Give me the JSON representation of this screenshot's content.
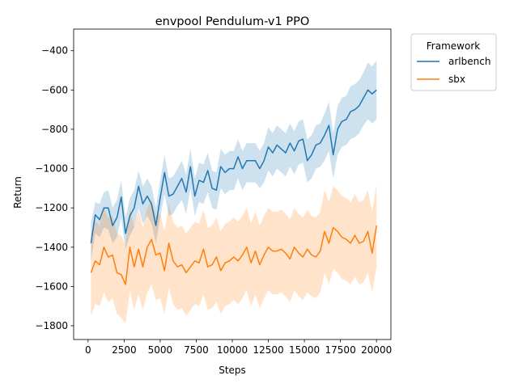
{
  "chart_data": {
    "type": "line",
    "title": "envpool Pendulum-v1 PPO",
    "xlabel": "Steps",
    "ylabel": "Return",
    "xlim": [
      -1000,
      21000
    ],
    "ylim": [
      -1870,
      -290
    ],
    "xticks": [
      0,
      2500,
      5000,
      7500,
      10000,
      12500,
      15000,
      17500,
      20000
    ],
    "xtick_labels": [
      "0",
      "2500",
      "5000",
      "7500",
      "10000",
      "12500",
      "15000",
      "17500",
      "20000"
    ],
    "yticks": [
      -1800,
      -1600,
      -1400,
      -1200,
      -1000,
      -800,
      -600,
      -400
    ],
    "ytick_labels": [
      "−1800",
      "−1600",
      "−1400",
      "−1200",
      "−1000",
      "−800",
      "−600",
      "−400"
    ],
    "grid": false,
    "legend": {
      "title": "Framework",
      "placement": "outside-right-top"
    },
    "shaded_band": "confidence interval around each series mean",
    "series": [
      {
        "name": "arlbench",
        "color": "#1f77b4",
        "band_color": "#1f77b4",
        "x": [
          200,
          500,
          800,
          1100,
          1400,
          1700,
          2000,
          2300,
          2600,
          2900,
          3200,
          3500,
          3800,
          4100,
          4400,
          4700,
          5000,
          5300,
          5600,
          5900,
          6200,
          6500,
          6800,
          7100,
          7400,
          7700,
          8000,
          8300,
          8600,
          8900,
          9200,
          9500,
          9800,
          10100,
          10400,
          10700,
          11000,
          11300,
          11600,
          11900,
          12200,
          12500,
          12800,
          13100,
          13400,
          13700,
          14000,
          14300,
          14600,
          14900,
          15200,
          15500,
          15800,
          16100,
          16400,
          16700,
          17000,
          17300,
          17600,
          17900,
          18200,
          18500,
          18800,
          19100,
          19400,
          19700,
          20000
        ],
        "y": [
          -1380,
          -1235,
          -1260,
          -1200,
          -1200,
          -1290,
          -1250,
          -1145,
          -1330,
          -1240,
          -1200,
          -1090,
          -1180,
          -1140,
          -1180,
          -1290,
          -1150,
          -1020,
          -1140,
          -1130,
          -1090,
          -1050,
          -1120,
          -990,
          -1140,
          -1060,
          -1070,
          -1010,
          -1100,
          -1110,
          -990,
          -1020,
          -1000,
          -1000,
          -940,
          -1000,
          -960,
          -960,
          -960,
          -1000,
          -960,
          -890,
          -920,
          -880,
          -900,
          -920,
          -870,
          -910,
          -860,
          -850,
          -960,
          -930,
          -880,
          -870,
          -830,
          -780,
          -930,
          -800,
          -760,
          -750,
          -710,
          -700,
          -680,
          -640,
          -600,
          -620,
          -600
        ],
        "lower": [
          -1470,
          -1330,
          -1350,
          -1300,
          -1310,
          -1380,
          -1350,
          -1250,
          -1410,
          -1340,
          -1300,
          -1200,
          -1280,
          -1240,
          -1280,
          -1380,
          -1250,
          -1130,
          -1240,
          -1230,
          -1190,
          -1160,
          -1230,
          -1100,
          -1240,
          -1170,
          -1180,
          -1120,
          -1200,
          -1210,
          -1100,
          -1130,
          -1110,
          -1110,
          -1050,
          -1110,
          -1070,
          -1070,
          -1070,
          -1100,
          -1070,
          -1010,
          -1040,
          -1000,
          -1020,
          -1040,
          -990,
          -1030,
          -980,
          -970,
          -1070,
          -1050,
          -1000,
          -990,
          -960,
          -910,
          -1050,
          -930,
          -890,
          -880,
          -850,
          -840,
          -820,
          -780,
          -750,
          -770,
          -750
        ],
        "upper": [
          -1280,
          -1170,
          -1180,
          -1120,
          -1110,
          -1200,
          -1160,
          -1060,
          -1250,
          -1150,
          -1110,
          -1010,
          -1090,
          -1050,
          -1090,
          -1200,
          -1060,
          -930,
          -1050,
          -1040,
          -1000,
          -960,
          -1030,
          -900,
          -1050,
          -970,
          -980,
          -920,
          -1010,
          -1020,
          -900,
          -930,
          -910,
          -910,
          -850,
          -910,
          -870,
          -870,
          -870,
          -910,
          -870,
          -790,
          -820,
          -780,
          -800,
          -820,
          -770,
          -810,
          -760,
          -750,
          -850,
          -830,
          -780,
          -770,
          -720,
          -660,
          -820,
          -680,
          -640,
          -630,
          -580,
          -570,
          -550,
          -510,
          -460,
          -480,
          -450
        ]
      },
      {
        "name": "sbx",
        "color": "#ff7f0e",
        "band_color": "#ff7f0e",
        "x": [
          200,
          500,
          800,
          1100,
          1400,
          1700,
          2000,
          2300,
          2600,
          2900,
          3200,
          3500,
          3800,
          4100,
          4400,
          4700,
          5000,
          5300,
          5600,
          5900,
          6200,
          6500,
          6800,
          7100,
          7400,
          7700,
          8000,
          8300,
          8600,
          8900,
          9200,
          9500,
          9800,
          10100,
          10400,
          10700,
          11000,
          11300,
          11600,
          11900,
          12200,
          12500,
          12800,
          13100,
          13400,
          13700,
          14000,
          14300,
          14600,
          14900,
          15200,
          15500,
          15800,
          16100,
          16400,
          16700,
          17000,
          17300,
          17600,
          17900,
          18200,
          18500,
          18800,
          19100,
          19400,
          19700,
          20000
        ],
        "y": [
          -1530,
          -1470,
          -1490,
          -1400,
          -1450,
          -1440,
          -1530,
          -1540,
          -1590,
          -1400,
          -1500,
          -1410,
          -1500,
          -1400,
          -1360,
          -1440,
          -1430,
          -1520,
          -1380,
          -1470,
          -1500,
          -1490,
          -1530,
          -1500,
          -1470,
          -1480,
          -1410,
          -1500,
          -1490,
          -1450,
          -1520,
          -1480,
          -1470,
          -1450,
          -1470,
          -1440,
          -1400,
          -1480,
          -1420,
          -1490,
          -1440,
          -1400,
          -1420,
          -1420,
          -1410,
          -1430,
          -1460,
          -1400,
          -1430,
          -1450,
          -1410,
          -1440,
          -1450,
          -1420,
          -1320,
          -1380,
          -1300,
          -1320,
          -1350,
          -1360,
          -1380,
          -1340,
          -1380,
          -1370,
          -1320,
          -1430,
          -1290
        ],
        "lower": [
          -1750,
          -1690,
          -1700,
          -1630,
          -1680,
          -1660,
          -1740,
          -1760,
          -1790,
          -1620,
          -1720,
          -1640,
          -1720,
          -1630,
          -1590,
          -1670,
          -1660,
          -1740,
          -1610,
          -1690,
          -1720,
          -1710,
          -1750,
          -1720,
          -1690,
          -1700,
          -1640,
          -1720,
          -1710,
          -1680,
          -1740,
          -1700,
          -1690,
          -1670,
          -1690,
          -1660,
          -1620,
          -1700,
          -1640,
          -1710,
          -1660,
          -1620,
          -1640,
          -1640,
          -1630,
          -1650,
          -1680,
          -1620,
          -1650,
          -1670,
          -1630,
          -1650,
          -1660,
          -1630,
          -1530,
          -1590,
          -1510,
          -1530,
          -1560,
          -1570,
          -1590,
          -1550,
          -1590,
          -1580,
          -1530,
          -1630,
          -1500
        ],
        "upper": [
          -1330,
          -1270,
          -1290,
          -1200,
          -1250,
          -1240,
          -1330,
          -1340,
          -1390,
          -1200,
          -1300,
          -1210,
          -1300,
          -1200,
          -1160,
          -1240,
          -1230,
          -1320,
          -1180,
          -1270,
          -1300,
          -1290,
          -1330,
          -1300,
          -1270,
          -1280,
          -1210,
          -1300,
          -1290,
          -1250,
          -1320,
          -1280,
          -1270,
          -1250,
          -1270,
          -1240,
          -1200,
          -1280,
          -1220,
          -1290,
          -1240,
          -1200,
          -1220,
          -1220,
          -1210,
          -1230,
          -1260,
          -1200,
          -1230,
          -1250,
          -1210,
          -1240,
          -1250,
          -1220,
          -1110,
          -1170,
          -1090,
          -1110,
          -1140,
          -1150,
          -1170,
          -1130,
          -1170,
          -1160,
          -1110,
          -1220,
          -1080
        ]
      }
    ]
  }
}
